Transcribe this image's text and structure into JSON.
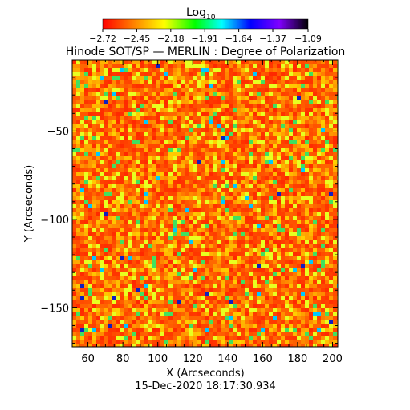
{
  "chart_data": {
    "type": "heatmap",
    "title": "Hinode SOT/SP — MERLIN : Degree of Polarization",
    "xlabel": "X (Arcseconds)",
    "ylabel": "Y (Arcseconds)",
    "xlim": [
      51,
      203
    ],
    "ylim": [
      -172,
      -10
    ],
    "x_ticks": [
      60,
      80,
      100,
      120,
      140,
      160,
      180,
      200
    ],
    "x_tick_labels": [
      "60",
      "80",
      "100",
      "120",
      "140",
      "160",
      "180",
      "200"
    ],
    "y_ticks": [
      -50,
      -100,
      -150
    ],
    "y_tick_labels": [
      "−50",
      "−100",
      "−150"
    ],
    "colorbar": {
      "label": "Log",
      "label_subscript": "10",
      "range": [
        -2.72,
        -1.09
      ],
      "ticks": [
        -2.72,
        -2.45,
        -2.18,
        -1.91,
        -1.64,
        -1.37,
        -1.09
      ],
      "tick_labels": [
        "−2.72",
        "−2.45",
        "−2.18",
        "−1.91",
        "−1.64",
        "−1.37",
        "−1.09"
      ],
      "colors": [
        "#ff0000",
        "#ff8000",
        "#ffff00",
        "#00ff00",
        "#00ffff",
        "#0000ff",
        "#8000ff",
        "#000000"
      ]
    },
    "dominant_range": [
      -2.72,
      -2.35
    ],
    "grid": false
  },
  "footer": {
    "timestamp": "15-Dec-2020 18:17:30.934"
  }
}
